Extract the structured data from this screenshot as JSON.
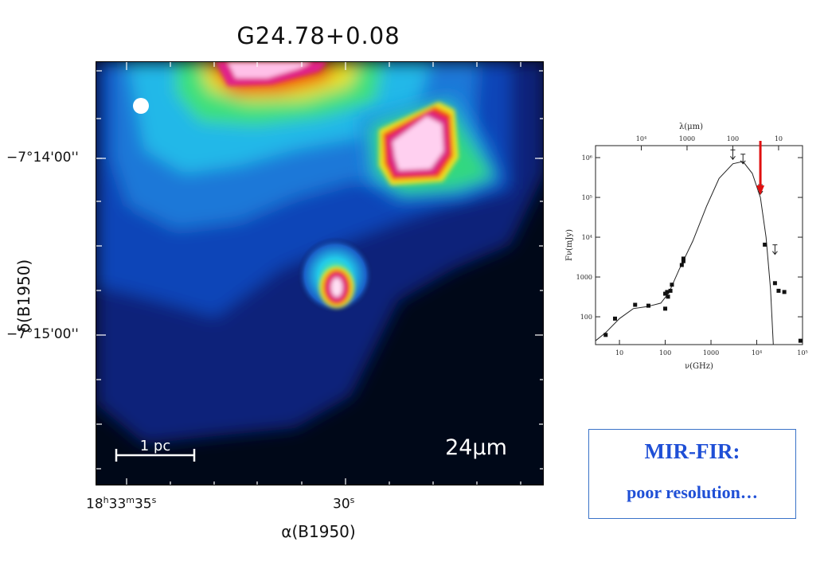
{
  "image_title": "G24.78+0.08",
  "map": {
    "band_label": "24μm",
    "scale_bar_label": "1 pc",
    "beam_icon": "beam-circle-icon",
    "y_axis_label": "δ(B1950)",
    "y_ticks": [
      "−7°14'00''",
      "−7°15'00''"
    ],
    "x_axis_label": "α(B1950)",
    "x_ticks": [
      "18h33m35s",
      "30s"
    ]
  },
  "sed_plot": {
    "top_axis_label": "λ(μm)",
    "top_ticks": [
      "10⁴",
      "1000",
      "100",
      "10"
    ],
    "y_axis_label": "Fν(mJy)",
    "y_ticks": [
      "10⁶",
      "10⁵",
      "10⁴",
      "1000",
      "100"
    ],
    "x_axis_label": "ν(GHz)",
    "x_ticks": [
      "10",
      "100",
      "1000",
      "10⁴",
      "10⁵"
    ],
    "arrow_color": "#e01010"
  },
  "chart_data": {
    "type": "scatter",
    "xlabel": "ν(GHz)",
    "ylabel": "Fν(mJy)",
    "x_scale": "log",
    "y_scale": "log",
    "xlim": [
      3,
      100000
    ],
    "ylim": [
      20,
      2000000
    ],
    "series": [
      {
        "points": [
          [
            5,
            35
          ],
          [
            8,
            90
          ],
          [
            22,
            200
          ],
          [
            43,
            190
          ],
          [
            100,
            160
          ],
          [
            100,
            380
          ],
          [
            110,
            420
          ],
          [
            115,
            320
          ],
          [
            130,
            450
          ],
          [
            140,
            640
          ],
          [
            230,
            2000
          ],
          [
            250,
            2500
          ],
          [
            250,
            2900
          ],
          [
            15000,
            6500
          ],
          [
            25000,
            700
          ],
          [
            30000,
            450
          ],
          [
            40000,
            420
          ],
          [
            90000,
            25
          ]
        ]
      }
    ],
    "upper_limits": [
      [
        3000,
        900000
      ],
      [
        5000,
        700000
      ],
      [
        12000,
        120000
      ],
      [
        25000,
        3700
      ]
    ],
    "model_curve": [
      [
        3,
        25
      ],
      [
        5,
        40
      ],
      [
        10,
        90
      ],
      [
        20,
        160
      ],
      [
        40,
        180
      ],
      [
        80,
        220
      ],
      [
        120,
        400
      ],
      [
        200,
        1500
      ],
      [
        400,
        8000
      ],
      [
        800,
        60000
      ],
      [
        1500,
        300000
      ],
      [
        3000,
        700000
      ],
      [
        5000,
        800000
      ],
      [
        8000,
        400000
      ],
      [
        12000,
        100000
      ],
      [
        16000,
        10000
      ],
      [
        20000,
        500
      ],
      [
        23000,
        20
      ]
    ],
    "marker_x": 12000
  },
  "annotation": {
    "title": "MIR-FIR:",
    "subtitle": "poor resolution…",
    "color": "#1f4fd6"
  }
}
